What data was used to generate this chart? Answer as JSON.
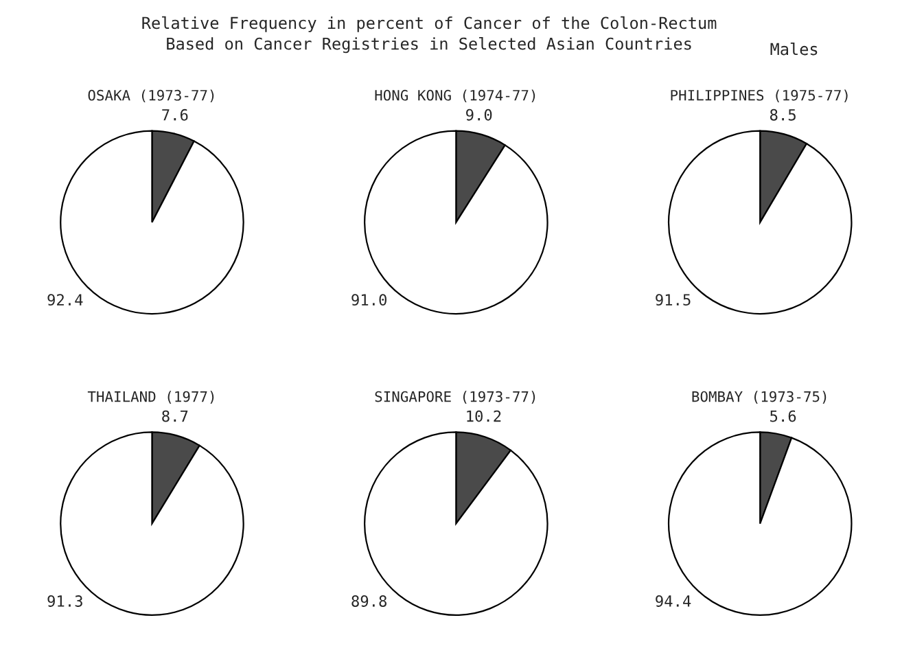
{
  "chart_data": [
    {
      "type": "other",
      "title": "Relative Frequency in percent of Cancer of the Colon-Rectum\nBased on Cancer Registries in Selected Asian Countries",
      "annotations": [
        "Males"
      ]
    },
    {
      "type": "pie",
      "title": "OSAKA (1973-77)",
      "categories": [
        null,
        null
      ],
      "values": [
        7.6,
        92.4
      ],
      "colors": [
        "#4a4a4a",
        "#ffffff"
      ],
      "data_labels": true
    },
    {
      "type": "pie",
      "title": "HONG KONG (1974-77)",
      "categories": [
        null,
        null
      ],
      "values": [
        9.0,
        91.0
      ],
      "value_labels": [
        "9.0",
        "91.0"
      ],
      "colors": [
        "#4a4a4a",
        "#ffffff"
      ]
    },
    {
      "type": "pie",
      "title": "PHILIPPINES (1975-77)",
      "categories": [
        null,
        null
      ],
      "values": [
        8.5,
        91.5
      ],
      "colors": [
        "#4a4a4a",
        "#ffffff"
      ],
      "data_labels": true
    },
    {
      "type": "pie",
      "title": "THAILAND (1977)",
      "categories": [
        null,
        null
      ],
      "values": [
        8.7,
        91.3
      ],
      "colors": [
        "#4a4a4a",
        "#ffffff"
      ],
      "data_labels": true
    },
    {
      "type": "pie",
      "title": "SINGAPORE (1973-77)",
      "categories": [
        null,
        null
      ],
      "values": [
        10.2,
        89.8
      ],
      "colors": [
        "#4a4a4a",
        "#ffffff"
      ],
      "data_labels": true
    },
    {
      "type": "pie",
      "title": "BOMBAY (1973-75)",
      "categories": [
        null,
        null
      ],
      "values": [
        5.6,
        94.4
      ],
      "colors": [
        "#4a4a4a",
        "#ffffff"
      ],
      "data_labels": true
    }
  ]
}
